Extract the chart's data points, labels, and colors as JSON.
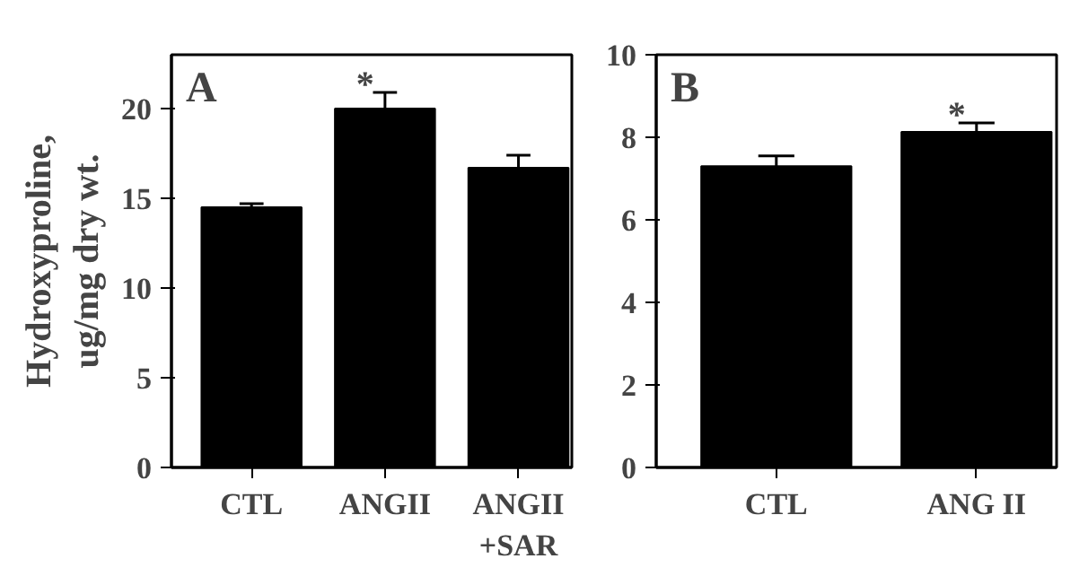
{
  "chart_data": [
    {
      "type": "bar",
      "ylabel": "Hydroxyproline,\nug/mg dry wt.",
      "categories": [
        "CTL",
        "ANGII",
        "ANGII\n+SAR"
      ],
      "values": [
        14.5,
        20.0,
        16.7
      ],
      "errors": [
        0.2,
        0.9,
        0.7
      ],
      "color": "#000000",
      "ylim": [
        0,
        23
      ],
      "yticks": [
        0,
        5,
        10,
        15,
        20
      ],
      "annotations": [
        "A",
        {
          "text": "*",
          "x": "ANGII",
          "y": 20.9
        }
      ],
      "grid": false
    },
    {
      "type": "bar",
      "categories": [
        "CTL",
        "ANG II"
      ],
      "values": [
        7.3,
        8.13
      ],
      "errors": [
        0.25,
        0.22
      ],
      "color": "#000000",
      "ylim": [
        0,
        10
      ],
      "yticks": [
        0,
        2,
        4,
        6,
        8,
        10
      ],
      "annotations": [
        "B",
        {
          "text": "*",
          "x": "ANG II",
          "y": 8.35
        }
      ],
      "grid": false
    }
  ]
}
